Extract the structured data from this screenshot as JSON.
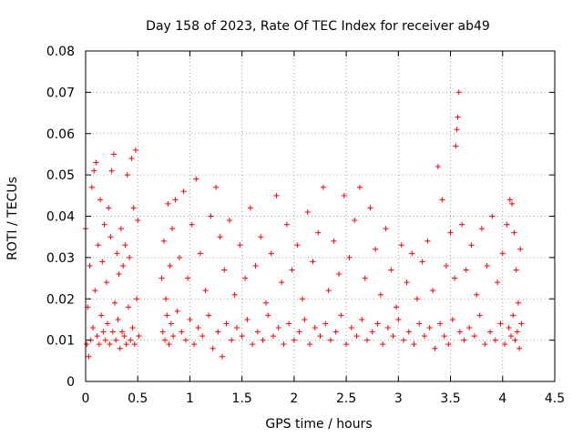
{
  "chart_data": {
    "type": "scatter",
    "title": "Day 158 of 2023, Rate Of TEC Index for receiver ab49",
    "xlabel": "GPS time / hours",
    "ylabel": "ROTI / TECUs",
    "xlim": [
      0,
      4.5
    ],
    "ylim": [
      0,
      0.08
    ],
    "x_ticks": [
      "0",
      "0.5",
      "1",
      "1.5",
      "2",
      "2.5",
      "3",
      "3.5",
      "4",
      "4.5"
    ],
    "y_ticks": [
      "0",
      "0.01",
      "0.02",
      "0.03",
      "0.04",
      "0.05",
      "0.06",
      "0.07",
      "0.08"
    ],
    "grid": true,
    "marker": "+",
    "series": [
      {
        "color": "#ff0000",
        "points": [
          [
            0.0,
            0.037
          ],
          [
            0.01,
            0.009
          ],
          [
            0.02,
            0.018
          ],
          [
            0.03,
            0.006
          ],
          [
            0.04,
            0.028
          ],
          [
            0.05,
            0.01
          ],
          [
            0.06,
            0.047
          ],
          [
            0.07,
            0.013
          ],
          [
            0.08,
            0.051
          ],
          [
            0.09,
            0.022
          ],
          [
            0.1,
            0.053
          ],
          [
            0.11,
            0.011
          ],
          [
            0.12,
            0.033
          ],
          [
            0.13,
            0.009
          ],
          [
            0.14,
            0.044
          ],
          [
            0.15,
            0.016
          ],
          [
            0.16,
            0.029
          ],
          [
            0.17,
            0.012
          ],
          [
            0.18,
            0.038
          ],
          [
            0.19,
            0.01
          ],
          [
            0.2,
            0.024
          ],
          [
            0.21,
            0.014
          ],
          [
            0.22,
            0.042
          ],
          [
            0.23,
            0.009
          ],
          [
            0.24,
            0.035
          ],
          [
            0.25,
            0.051
          ],
          [
            0.26,
            0.012
          ],
          [
            0.27,
            0.055
          ],
          [
            0.28,
            0.019
          ],
          [
            0.29,
            0.01
          ],
          [
            0.3,
            0.031
          ],
          [
            0.31,
            0.015
          ],
          [
            0.32,
            0.026
          ],
          [
            0.33,
            0.008
          ],
          [
            0.34,
            0.037
          ],
          [
            0.35,
            0.012
          ],
          [
            0.36,
            0.028
          ],
          [
            0.37,
            0.011
          ],
          [
            0.38,
            0.033
          ],
          [
            0.39,
            0.009
          ],
          [
            0.4,
            0.05
          ],
          [
            0.41,
            0.018
          ],
          [
            0.42,
            0.03
          ],
          [
            0.43,
            0.01
          ],
          [
            0.44,
            0.054
          ],
          [
            0.45,
            0.013
          ],
          [
            0.46,
            0.042
          ],
          [
            0.47,
            0.009
          ],
          [
            0.48,
            0.056
          ],
          [
            0.49,
            0.02
          ],
          [
            0.5,
            0.039
          ],
          [
            0.51,
            0.011
          ],
          [
            0.73,
            0.025
          ],
          [
            0.74,
            0.012
          ],
          [
            0.75,
            0.034
          ],
          [
            0.76,
            0.01
          ],
          [
            0.77,
            0.02
          ],
          [
            0.78,
            0.016
          ],
          [
            0.79,
            0.043
          ],
          [
            0.8,
            0.009
          ],
          [
            0.81,
            0.028
          ],
          [
            0.82,
            0.014
          ],
          [
            0.83,
            0.037
          ],
          [
            0.84,
            0.011
          ],
          [
            0.86,
            0.044
          ],
          [
            0.88,
            0.017
          ],
          [
            0.9,
            0.03
          ],
          [
            0.92,
            0.012
          ],
          [
            0.94,
            0.046
          ],
          [
            0.96,
            0.01
          ],
          [
            0.98,
            0.025
          ],
          [
            1.0,
            0.015
          ],
          [
            1.02,
            0.038
          ],
          [
            1.04,
            0.009
          ],
          [
            1.06,
            0.049
          ],
          [
            1.08,
            0.013
          ],
          [
            1.1,
            0.031
          ],
          [
            1.12,
            0.011
          ],
          [
            1.15,
            0.022
          ],
          [
            1.18,
            0.016
          ],
          [
            1.2,
            0.04
          ],
          [
            1.22,
            0.008
          ],
          [
            1.25,
            0.047
          ],
          [
            1.27,
            0.012
          ],
          [
            1.29,
            0.035
          ],
          [
            1.31,
            0.006
          ],
          [
            1.33,
            0.027
          ],
          [
            1.35,
            0.014
          ],
          [
            1.38,
            0.039
          ],
          [
            1.4,
            0.01
          ],
          [
            1.43,
            0.021
          ],
          [
            1.45,
            0.013
          ],
          [
            1.48,
            0.033
          ],
          [
            1.5,
            0.011
          ],
          [
            1.53,
            0.025
          ],
          [
            1.55,
            0.015
          ],
          [
            1.58,
            0.042
          ],
          [
            1.6,
            0.009
          ],
          [
            1.63,
            0.028
          ],
          [
            1.65,
            0.012
          ],
          [
            1.68,
            0.035
          ],
          [
            1.7,
            0.01
          ],
          [
            1.73,
            0.019
          ],
          [
            1.75,
            0.016
          ],
          [
            1.78,
            0.031
          ],
          [
            1.8,
            0.011
          ],
          [
            1.83,
            0.045
          ],
          [
            1.85,
            0.013
          ],
          [
            1.88,
            0.024
          ],
          [
            1.9,
            0.009
          ],
          [
            1.93,
            0.038
          ],
          [
            1.95,
            0.014
          ],
          [
            1.98,
            0.027
          ],
          [
            2.0,
            0.01
          ],
          [
            2.03,
            0.033
          ],
          [
            2.05,
            0.012
          ],
          [
            2.08,
            0.02
          ],
          [
            2.1,
            0.015
          ],
          [
            2.13,
            0.041
          ],
          [
            2.15,
            0.009
          ],
          [
            2.18,
            0.029
          ],
          [
            2.2,
            0.013
          ],
          [
            2.23,
            0.036
          ],
          [
            2.25,
            0.011
          ],
          [
            2.28,
            0.047
          ],
          [
            2.3,
            0.014
          ],
          [
            2.33,
            0.022
          ],
          [
            2.35,
            0.01
          ],
          [
            2.38,
            0.034
          ],
          [
            2.4,
            0.012
          ],
          [
            2.43,
            0.026
          ],
          [
            2.45,
            0.016
          ],
          [
            2.48,
            0.045
          ],
          [
            2.5,
            0.009
          ],
          [
            2.53,
            0.03
          ],
          [
            2.55,
            0.013
          ],
          [
            2.58,
            0.039
          ],
          [
            2.6,
            0.011
          ],
          [
            2.63,
            0.047
          ],
          [
            2.65,
            0.015
          ],
          [
            2.68,
            0.025
          ],
          [
            2.7,
            0.01
          ],
          [
            2.73,
            0.042
          ],
          [
            2.75,
            0.012
          ],
          [
            2.78,
            0.032
          ],
          [
            2.8,
            0.014
          ],
          [
            2.83,
            0.021
          ],
          [
            2.85,
            0.009
          ],
          [
            2.88,
            0.037
          ],
          [
            2.9,
            0.013
          ],
          [
            2.93,
            0.027
          ],
          [
            2.95,
            0.011
          ],
          [
            2.98,
            0.018
          ],
          [
            3.0,
            0.015
          ],
          [
            3.03,
            0.033
          ],
          [
            3.05,
            0.01
          ],
          [
            3.08,
            0.024
          ],
          [
            3.1,
            0.012
          ],
          [
            3.13,
            0.031
          ],
          [
            3.15,
            0.009
          ],
          [
            3.18,
            0.02
          ],
          [
            3.2,
            0.014
          ],
          [
            3.23,
            0.029
          ],
          [
            3.25,
            0.011
          ],
          [
            3.28,
            0.034
          ],
          [
            3.3,
            0.013
          ],
          [
            3.33,
            0.022
          ],
          [
            3.35,
            0.008
          ],
          [
            3.38,
            0.052
          ],
          [
            3.4,
            0.014
          ],
          [
            3.42,
            0.044
          ],
          [
            3.44,
            0.011
          ],
          [
            3.46,
            0.028
          ],
          [
            3.48,
            0.009
          ],
          [
            3.5,
            0.036
          ],
          [
            3.52,
            0.015
          ],
          [
            3.54,
            0.025
          ],
          [
            3.55,
            0.057
          ],
          [
            3.56,
            0.061
          ],
          [
            3.57,
            0.064
          ],
          [
            3.58,
            0.07
          ],
          [
            3.59,
            0.012
          ],
          [
            3.61,
            0.038
          ],
          [
            3.63,
            0.01
          ],
          [
            3.65,
            0.027
          ],
          [
            3.68,
            0.013
          ],
          [
            3.7,
            0.033
          ],
          [
            3.73,
            0.011
          ],
          [
            3.75,
            0.021
          ],
          [
            3.78,
            0.016
          ],
          [
            3.8,
            0.037
          ],
          [
            3.83,
            0.009
          ],
          [
            3.85,
            0.028
          ],
          [
            3.88,
            0.012
          ],
          [
            3.9,
            0.04
          ],
          [
            3.93,
            0.01
          ],
          [
            3.95,
            0.024
          ],
          [
            3.98,
            0.014
          ],
          [
            4.0,
            0.031
          ],
          [
            4.02,
            0.009
          ],
          [
            4.04,
            0.038
          ],
          [
            4.06,
            0.013
          ],
          [
            4.07,
            0.044
          ],
          [
            4.08,
            0.011
          ],
          [
            4.09,
            0.043
          ],
          [
            4.1,
            0.016
          ],
          [
            4.11,
            0.036
          ],
          [
            4.12,
            0.01
          ],
          [
            4.13,
            0.027
          ],
          [
            4.14,
            0.012
          ],
          [
            4.15,
            0.019
          ],
          [
            4.16,
            0.008
          ],
          [
            4.17,
            0.032
          ],
          [
            4.18,
            0.014
          ]
        ]
      }
    ]
  }
}
